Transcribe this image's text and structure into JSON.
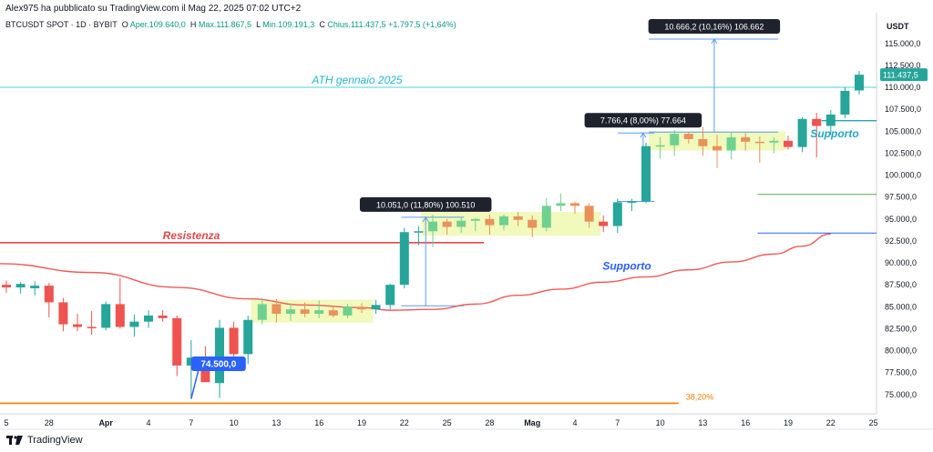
{
  "header": {
    "published": "Alex975 ha pubblicato su TradingView.com il Mag 22, 2025 07:02 UTC+2",
    "symbol": "BTCUSDT SPOT · 1D · BYBIT",
    "open_label": "O",
    "open": "Aper.109.640,0",
    "high_label": "H",
    "high": "Max.111.867,5",
    "low_label": "L",
    "low": "Min.109.191,3",
    "close_label": "C",
    "close": "Chius.111.437,5",
    "change": "+1.797,5 (+1,64%)"
  },
  "footer": {
    "brand": "TradingView",
    "logo_icon": "tradingview-logo-icon"
  },
  "colors": {
    "up": "#26a69a",
    "down": "#ef5350",
    "zone": "#eef8b0",
    "ma": "#f05a5a",
    "resist": "#e04a4a",
    "support_blue": "#2962ff",
    "ath": "#4dd0e1",
    "fib": "#f57c00",
    "green_line": "#4caf50"
  },
  "chart_data": {
    "type": "candlestick",
    "currency": "USDT",
    "x_ticks": [
      {
        "i": 0,
        "label": "5"
      },
      {
        "i": 3,
        "label": "28"
      },
      {
        "i": 7,
        "label": "Apr"
      },
      {
        "i": 10,
        "label": "4"
      },
      {
        "i": 13,
        "label": "7"
      },
      {
        "i": 16,
        "label": "10"
      },
      {
        "i": 19,
        "label": "13"
      },
      {
        "i": 22,
        "label": "16"
      },
      {
        "i": 25,
        "label": "19"
      },
      {
        "i": 28,
        "label": "22"
      },
      {
        "i": 31,
        "label": "25"
      },
      {
        "i": 34,
        "label": "28"
      },
      {
        "i": 37,
        "label": "Mag"
      },
      {
        "i": 40,
        "label": "4"
      },
      {
        "i": 43,
        "label": "7"
      },
      {
        "i": 46,
        "label": "10"
      },
      {
        "i": 49,
        "label": "13"
      },
      {
        "i": 52,
        "label": "16"
      },
      {
        "i": 55,
        "label": "19"
      },
      {
        "i": 58,
        "label": "22"
      },
      {
        "i": 61,
        "label": "25"
      }
    ],
    "y_ticks": [
      "115.000,0",
      "112.500,0",
      "110.000,0",
      "107.500,0",
      "105.000,0",
      "102.500,0",
      "100.000,0",
      "97.500,0",
      "95.000,0",
      "92.500,0",
      "90.000,0",
      "87.500,0",
      "85.000,0",
      "82.500,0",
      "80.000,0",
      "77.500,0",
      "75.000,0"
    ],
    "y_tick_values": [
      115000,
      112500,
      110000,
      107500,
      105000,
      102500,
      100000,
      97500,
      95000,
      92500,
      90000,
      87500,
      85000,
      82500,
      80000,
      77500,
      75000
    ],
    "ylim": [
      72800,
      118500
    ],
    "last_price": 111437.5,
    "last_price_label": "111.437,5",
    "candles": [
      {
        "o": 87500,
        "h": 88000,
        "l": 86600,
        "c": 87200
      },
      {
        "o": 87200,
        "h": 87800,
        "l": 86500,
        "c": 87600
      },
      {
        "o": 87100,
        "h": 87900,
        "l": 86300,
        "c": 87400
      },
      {
        "o": 87400,
        "h": 87700,
        "l": 83800,
        "c": 85500
      },
      {
        "o": 85500,
        "h": 86000,
        "l": 82200,
        "c": 83000
      },
      {
        "o": 83000,
        "h": 84200,
        "l": 82200,
        "c": 82700
      },
      {
        "o": 82700,
        "h": 84500,
        "l": 81800,
        "c": 82600
      },
      {
        "o": 82600,
        "h": 85600,
        "l": 82300,
        "c": 85300
      },
      {
        "o": 85300,
        "h": 88300,
        "l": 82500,
        "c": 82700
      },
      {
        "o": 82700,
        "h": 84100,
        "l": 81600,
        "c": 83300
      },
      {
        "o": 83300,
        "h": 84600,
        "l": 82600,
        "c": 84000
      },
      {
        "o": 84000,
        "h": 84600,
        "l": 83300,
        "c": 83700
      },
      {
        "o": 83700,
        "h": 84000,
        "l": 77100,
        "c": 78300
      },
      {
        "o": 78300,
        "h": 81200,
        "l": 74500,
        "c": 79200
      },
      {
        "o": 79200,
        "h": 80500,
        "l": 76800,
        "c": 76400
      },
      {
        "o": 76300,
        "h": 83500,
        "l": 74600,
        "c": 82600
      },
      {
        "o": 82600,
        "h": 83300,
        "l": 79000,
        "c": 79600
      },
      {
        "o": 79600,
        "h": 84000,
        "l": 78500,
        "c": 83500
      },
      {
        "o": 83500,
        "h": 86000,
        "l": 83000,
        "c": 85300
      },
      {
        "o": 85300,
        "h": 85900,
        "l": 83200,
        "c": 84200
      },
      {
        "o": 84200,
        "h": 85400,
        "l": 83400,
        "c": 84700
      },
      {
        "o": 84700,
        "h": 85500,
        "l": 83800,
        "c": 84200
      },
      {
        "o": 84200,
        "h": 85700,
        "l": 83700,
        "c": 84600
      },
      {
        "o": 84600,
        "h": 85100,
        "l": 83800,
        "c": 84000
      },
      {
        "o": 84000,
        "h": 85300,
        "l": 83700,
        "c": 85000
      },
      {
        "o": 85000,
        "h": 85400,
        "l": 84300,
        "c": 84700
      },
      {
        "o": 84700,
        "h": 85800,
        "l": 84200,
        "c": 85200
      },
      {
        "o": 85200,
        "h": 87600,
        "l": 84700,
        "c": 87500
      },
      {
        "o": 87500,
        "h": 94000,
        "l": 87100,
        "c": 93500
      },
      {
        "o": 93500,
        "h": 94200,
        "l": 92000,
        "c": 93600
      },
      {
        "o": 93600,
        "h": 95500,
        "l": 91800,
        "c": 94700
      },
      {
        "o": 94700,
        "h": 95000,
        "l": 93200,
        "c": 94100
      },
      {
        "o": 94100,
        "h": 95200,
        "l": 93400,
        "c": 94800
      },
      {
        "o": 94800,
        "h": 95100,
        "l": 93600,
        "c": 95000
      },
      {
        "o": 95000,
        "h": 95500,
        "l": 93200,
        "c": 94300
      },
      {
        "o": 94300,
        "h": 95500,
        "l": 93700,
        "c": 95300
      },
      {
        "o": 95300,
        "h": 95800,
        "l": 94200,
        "c": 94900
      },
      {
        "o": 94900,
        "h": 95400,
        "l": 92900,
        "c": 94000
      },
      {
        "o": 94000,
        "h": 97400,
        "l": 93600,
        "c": 96500
      },
      {
        "o": 96500,
        "h": 97900,
        "l": 95900,
        "c": 96800
      },
      {
        "o": 96800,
        "h": 97000,
        "l": 95600,
        "c": 96500
      },
      {
        "o": 96500,
        "h": 96800,
        "l": 94000,
        "c": 94700
      },
      {
        "o": 94700,
        "h": 95400,
        "l": 93500,
        "c": 94200
      },
      {
        "o": 94200,
        "h": 97300,
        "l": 93400,
        "c": 96900
      },
      {
        "o": 96900,
        "h": 97300,
        "l": 95900,
        "c": 97000
      },
      {
        "o": 97000,
        "h": 103700,
        "l": 96800,
        "c": 103300
      },
      {
        "o": 103300,
        "h": 104300,
        "l": 101900,
        "c": 103400
      },
      {
        "o": 103400,
        "h": 105100,
        "l": 102200,
        "c": 104700
      },
      {
        "o": 104700,
        "h": 104900,
        "l": 103600,
        "c": 104100
      },
      {
        "o": 104100,
        "h": 105500,
        "l": 102200,
        "c": 103300
      },
      {
        "o": 103300,
        "h": 104600,
        "l": 100800,
        "c": 102800
      },
      {
        "o": 102800,
        "h": 104900,
        "l": 101800,
        "c": 104300
      },
      {
        "o": 104300,
        "h": 104800,
        "l": 102800,
        "c": 103800
      },
      {
        "o": 103800,
        "h": 104400,
        "l": 101400,
        "c": 103700
      },
      {
        "o": 103700,
        "h": 104300,
        "l": 102500,
        "c": 103900
      },
      {
        "o": 103900,
        "h": 104500,
        "l": 102900,
        "c": 103200
      },
      {
        "o": 103200,
        "h": 106600,
        "l": 102600,
        "c": 106400
      },
      {
        "o": 106400,
        "h": 107100,
        "l": 102000,
        "c": 105600
      },
      {
        "o": 105600,
        "h": 107400,
        "l": 104600,
        "c": 106900
      },
      {
        "o": 106900,
        "h": 110000,
        "l": 106500,
        "c": 109600
      },
      {
        "o": 109640,
        "h": 111867.5,
        "l": 109191.3,
        "c": 111437.5
      }
    ],
    "moving_average": [
      [
        0,
        89900
      ],
      [
        6,
        88900
      ],
      [
        12,
        87200
      ],
      [
        17,
        85900
      ],
      [
        21,
        85200
      ],
      [
        25,
        84900
      ],
      [
        27,
        84600
      ],
      [
        30,
        84700
      ],
      [
        33,
        85300
      ],
      [
        36,
        86300
      ],
      [
        39,
        87000
      ],
      [
        42,
        87800
      ],
      [
        45,
        88400
      ],
      [
        48,
        89200
      ],
      [
        51,
        90100
      ],
      [
        54,
        91000
      ],
      [
        56,
        91900
      ],
      [
        58,
        93300
      ]
    ],
    "zones": [
      {
        "i0": 17.2,
        "i1": 25.8,
        "y0": 83200,
        "y1": 85800
      },
      {
        "i0": 29.2,
        "i1": 41.8,
        "y0": 93100,
        "y1": 95800
      },
      {
        "i0": 45.2,
        "i1": 54.8,
        "y0": 102800,
        "y1": 105000
      }
    ],
    "levels": [
      {
        "name": "resistenza",
        "value": 92300,
        "i0": 0,
        "i1": 33.6,
        "color": "#e04a4a",
        "width": 1.6
      },
      {
        "name": "ath",
        "value": 110000,
        "i0": 0,
        "i1": 62.8,
        "color": "#4dd0e1",
        "width": 1
      },
      {
        "name": "support-upper",
        "value": 106200,
        "i0": 57.8,
        "i1": 62.8,
        "color": "#26a6b4",
        "width": 1.4
      },
      {
        "name": "green-level",
        "value": 97800,
        "i0": 53.3,
        "i1": 62.8,
        "color": "#4caf50",
        "width": 1
      },
      {
        "name": "support-lower",
        "value": 93400,
        "i0": 53.3,
        "i1": 62.8,
        "color": "#2962ff",
        "width": 1
      },
      {
        "name": "fib",
        "value": 74000,
        "i0": 0,
        "i1": 47.3,
        "color": "#f57c00",
        "width": 1.6
      }
    ],
    "measures": [
      {
        "label": "10.051,0 (11,80%) 100.510",
        "i": 29.5,
        "i0": 27.8,
        "i1": 32.2,
        "y0": 85100,
        "y1": 95200
      },
      {
        "label": "7.766,4 (8,00%) 77.664",
        "i": 44.8,
        "i0": 43.0,
        "i1": 45.6,
        "y0": 97000,
        "y1": 104800
      },
      {
        "label": "10.666,2 (10,16%) 106.662",
        "i": 49.8,
        "i0": 45.2,
        "i1": 54.3,
        "y0": 104900,
        "y1": 115500
      }
    ],
    "annotations": {
      "ath": "ATH gennaio 2025",
      "resistenza": "Resistenza",
      "supporto_upper": "Supporto",
      "supporto_lower": "Supporto",
      "low_label": "74.500,0",
      "fib_label": "38,20%"
    }
  }
}
